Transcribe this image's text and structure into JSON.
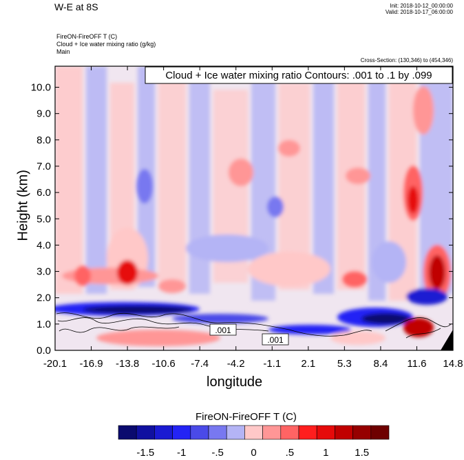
{
  "header": {
    "title": "W-E at 8S",
    "init": "Init: 2018-10-12_00:00:00",
    "valid": "Valid: 2018-10-17_06:00:00",
    "field": "FireON-FireOFF T   (C)",
    "field2": "Cloud + Ice water mixing ratio   (g/kg)",
    "field3": "Main",
    "cross_section": "Cross-Section: (130,346) to (454,346)"
  },
  "chart_data": {
    "type": "heatmap",
    "title": "W-E at 8S",
    "xlabel": "longitude",
    "ylabel": "Height (km)",
    "x_ticks": [
      "-20.1",
      "-16.9",
      "-13.8",
      "-10.6",
      "-7.4",
      "-4.2",
      "-1.1",
      "2.1",
      "5.3",
      "8.4",
      "11.6",
      "14.8"
    ],
    "x_range": [
      -20.1,
      14.8
    ],
    "y_ticks": [
      "0.0",
      "1.0",
      "2.0",
      "3.0",
      "4.0",
      "5.0",
      "6.0",
      "7.0",
      "8.0",
      "9.0",
      "10.0"
    ],
    "y_range": [
      0.0,
      10.8
    ],
    "contour_info": "Cloud + Ice water mixing ratio Contours: .001 to .1 by .099",
    "contour_labels": [
      ".001",
      ".001"
    ],
    "colorbar": {
      "title": "FireON-FireOFF T  (C)",
      "tick_labels": [
        "-1.5",
        "-1",
        "-.5",
        "0",
        ".5",
        "1",
        "1.5"
      ],
      "levels": [
        -1.75,
        -1.5,
        -1.25,
        -1.0,
        -0.75,
        -0.5,
        -0.25,
        0.0,
        0.25,
        0.5,
        0.75,
        1.0,
        1.25,
        1.5,
        1.75
      ],
      "colors": [
        "#0a0a6e",
        "#1010a0",
        "#1a1ad2",
        "#2323f5",
        "#4a4ae8",
        "#7878f0",
        "#b4b4f5",
        "#ffc8c8",
        "#ff9696",
        "#ff6464",
        "#ff1e1e",
        "#e60a0a",
        "#c00000",
        "#960000",
        "#6e0000"
      ]
    },
    "features": [
      {
        "kind": "warm anomaly",
        "x": 13.5,
        "y": 3.0,
        "value": 1.5
      },
      {
        "kind": "warm anomaly",
        "x": 12.5,
        "y": 6.0,
        "value": 1.0
      },
      {
        "kind": "cold band",
        "x": -12.0,
        "y": 1.3,
        "value": -1.5
      },
      {
        "kind": "cold band",
        "x": 8.0,
        "y": 1.2,
        "value": -1.25
      },
      {
        "kind": "warm anomaly",
        "x": 12.0,
        "y": 0.9,
        "value": 1.5
      }
    ]
  }
}
